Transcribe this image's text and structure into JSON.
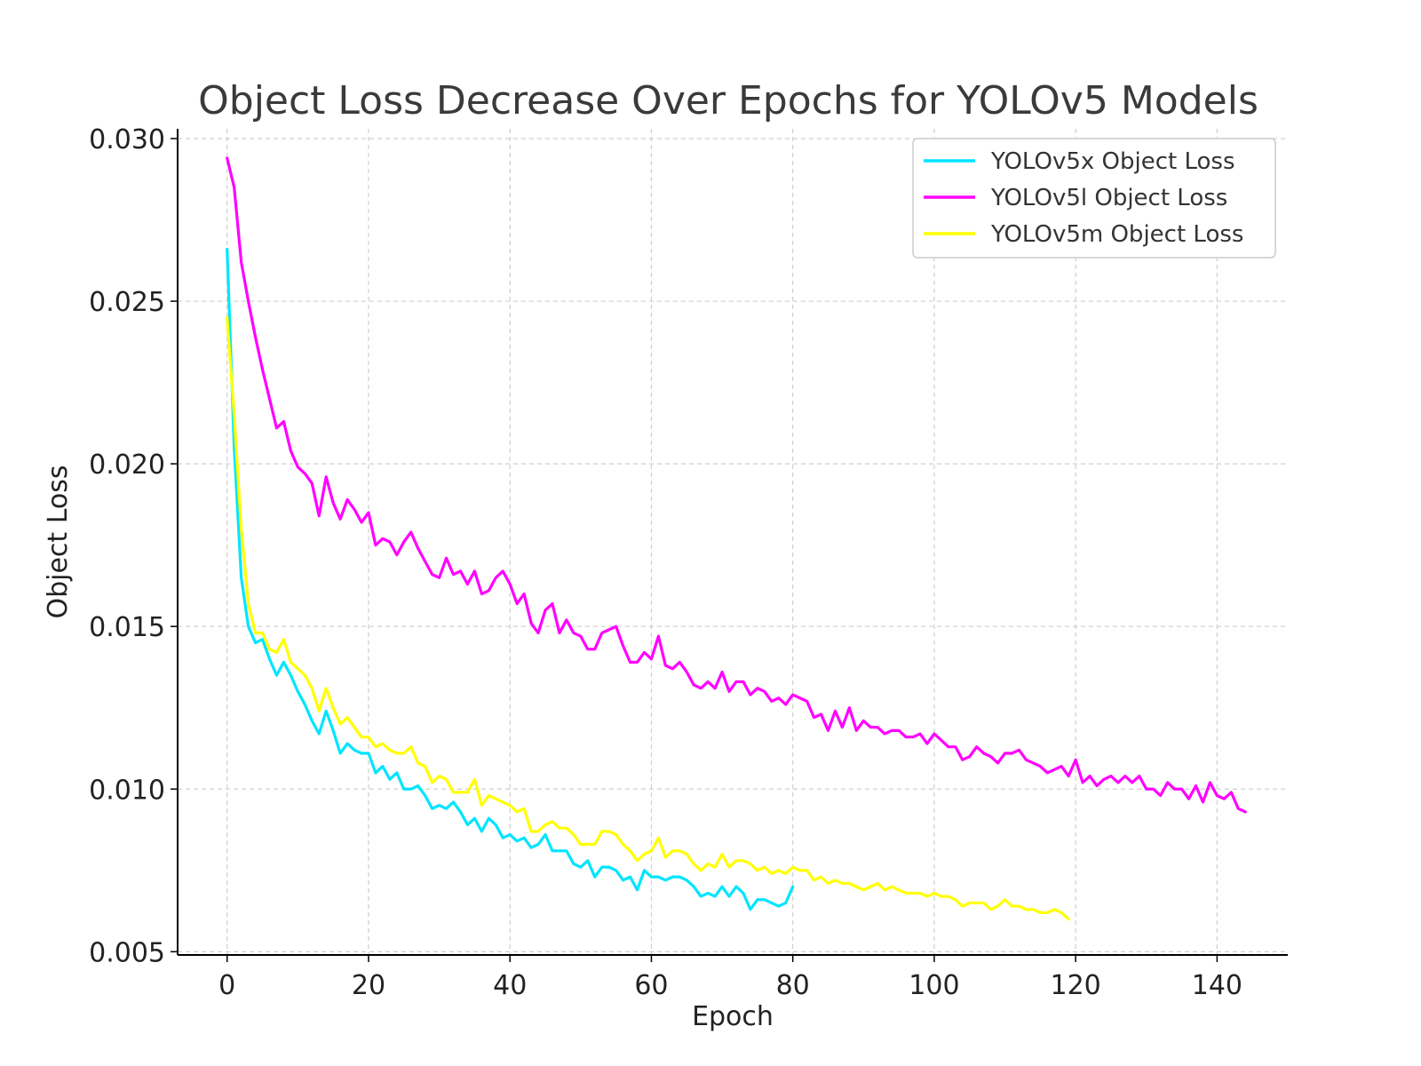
{
  "chart_data": {
    "type": "line",
    "title": "Object Loss Decrease Over Epochs for YOLOv5 Models",
    "xlabel": "Epoch",
    "ylabel": "Object Loss",
    "xlim": [
      -7,
      150
    ],
    "ylim": [
      0.0049,
      0.0303
    ],
    "xticks": [
      0,
      20,
      40,
      60,
      80,
      100,
      120,
      140
    ],
    "xtick_labels": [
      "0",
      "20",
      "40",
      "60",
      "80",
      "100",
      "120",
      "140"
    ],
    "yticks": [
      0.005,
      0.01,
      0.015,
      0.02,
      0.025,
      0.03
    ],
    "ytick_labels": [
      "0.005",
      "0.010",
      "0.015",
      "0.020",
      "0.025",
      "0.030"
    ],
    "grid": true,
    "legend_position": "top-right",
    "series": [
      {
        "name": "YOLOv5x Object Loss",
        "color": "#00e5ff",
        "x_start": 0,
        "values": [
          0.0266,
          0.0205,
          0.0165,
          0.015,
          0.0145,
          0.0146,
          0.014,
          0.0135,
          0.0139,
          0.0135,
          0.013,
          0.0126,
          0.0121,
          0.0117,
          0.0124,
          0.0118,
          0.0111,
          0.0114,
          0.0112,
          0.0111,
          0.0111,
          0.0105,
          0.0107,
          0.0103,
          0.0105,
          0.01,
          0.01,
          0.0101,
          0.0098,
          0.0094,
          0.0095,
          0.0094,
          0.0096,
          0.0093,
          0.0089,
          0.0091,
          0.0087,
          0.0091,
          0.0089,
          0.0085,
          0.0086,
          0.0084,
          0.0085,
          0.0082,
          0.0083,
          0.0086,
          0.0081,
          0.0081,
          0.0081,
          0.0077,
          0.0076,
          0.0078,
          0.0073,
          0.0076,
          0.0076,
          0.0075,
          0.0072,
          0.0073,
          0.0069,
          0.0075,
          0.0073,
          0.0073,
          0.0072,
          0.0073,
          0.0073,
          0.0072,
          0.007,
          0.0067,
          0.0068,
          0.0067,
          0.007,
          0.0067,
          0.007,
          0.0068,
          0.0063,
          0.0066,
          0.0066,
          0.0065,
          0.0064,
          0.0065,
          0.007
        ]
      },
      {
        "name": "YOLOv5l Object Loss",
        "color": "#ff00ff",
        "x_start": 0,
        "values": [
          0.0294,
          0.0285,
          0.0262,
          0.025,
          0.0239,
          0.0229,
          0.022,
          0.0211,
          0.0213,
          0.0204,
          0.0199,
          0.0197,
          0.0194,
          0.0184,
          0.0196,
          0.0188,
          0.0183,
          0.0189,
          0.0186,
          0.0182,
          0.0185,
          0.0175,
          0.0177,
          0.0176,
          0.0172,
          0.0176,
          0.0179,
          0.0174,
          0.017,
          0.0166,
          0.0165,
          0.0171,
          0.0166,
          0.0167,
          0.0163,
          0.0167,
          0.016,
          0.0161,
          0.0165,
          0.0167,
          0.0163,
          0.0157,
          0.016,
          0.0151,
          0.0148,
          0.0155,
          0.0157,
          0.0148,
          0.0152,
          0.0148,
          0.0147,
          0.0143,
          0.0143,
          0.0148,
          0.0149,
          0.015,
          0.0144,
          0.0139,
          0.0139,
          0.0142,
          0.014,
          0.0147,
          0.0138,
          0.0137,
          0.0139,
          0.0136,
          0.0132,
          0.0131,
          0.0133,
          0.0131,
          0.0136,
          0.013,
          0.0133,
          0.0133,
          0.0129,
          0.0131,
          0.013,
          0.0127,
          0.0128,
          0.0126,
          0.0129,
          0.0128,
          0.0127,
          0.0122,
          0.0123,
          0.0118,
          0.0124,
          0.0119,
          0.0125,
          0.0118,
          0.0121,
          0.0119,
          0.0119,
          0.0117,
          0.0118,
          0.0118,
          0.0116,
          0.0116,
          0.0117,
          0.0114,
          0.0117,
          0.0115,
          0.0113,
          0.0113,
          0.0109,
          0.011,
          0.0113,
          0.0111,
          0.011,
          0.0108,
          0.0111,
          0.0111,
          0.0112,
          0.0109,
          0.0108,
          0.0107,
          0.0105,
          0.0106,
          0.0107,
          0.0104,
          0.0109,
          0.0102,
          0.0104,
          0.0101,
          0.0103,
          0.0104,
          0.0102,
          0.0104,
          0.0102,
          0.0104,
          0.01,
          0.01,
          0.0098,
          0.0102,
          0.01,
          0.01,
          0.0097,
          0.0101,
          0.0096,
          0.0102,
          0.0098,
          0.0097,
          0.0099,
          0.0094,
          0.0093
        ]
      },
      {
        "name": "YOLOv5m Object Loss",
        "color": "#ffff00",
        "x_start": 0,
        "values": [
          0.0245,
          0.0215,
          0.018,
          0.0157,
          0.0148,
          0.0148,
          0.0143,
          0.0142,
          0.0146,
          0.0139,
          0.0137,
          0.0135,
          0.0131,
          0.0124,
          0.0131,
          0.0125,
          0.012,
          0.0122,
          0.0119,
          0.0116,
          0.0116,
          0.0113,
          0.0114,
          0.0112,
          0.0111,
          0.0111,
          0.0113,
          0.0108,
          0.0107,
          0.0102,
          0.0104,
          0.0103,
          0.0099,
          0.0099,
          0.0099,
          0.0103,
          0.0095,
          0.0098,
          0.0097,
          0.0096,
          0.0095,
          0.0093,
          0.0094,
          0.0087,
          0.0087,
          0.0089,
          0.009,
          0.0088,
          0.0088,
          0.0086,
          0.0083,
          0.0083,
          0.0083,
          0.0087,
          0.0087,
          0.0086,
          0.0083,
          0.0081,
          0.0078,
          0.008,
          0.0081,
          0.0085,
          0.0079,
          0.0081,
          0.0081,
          0.008,
          0.0077,
          0.0075,
          0.0077,
          0.0076,
          0.008,
          0.0076,
          0.0078,
          0.0078,
          0.0077,
          0.0075,
          0.0076,
          0.0074,
          0.0075,
          0.0074,
          0.0076,
          0.0075,
          0.0075,
          0.0072,
          0.0073,
          0.0071,
          0.0072,
          0.0071,
          0.0071,
          0.007,
          0.0069,
          0.007,
          0.0071,
          0.0069,
          0.007,
          0.0069,
          0.0068,
          0.0068,
          0.0068,
          0.0067,
          0.0068,
          0.0067,
          0.0067,
          0.0066,
          0.0064,
          0.0065,
          0.0065,
          0.0065,
          0.0063,
          0.0064,
          0.0066,
          0.0064,
          0.0064,
          0.0063,
          0.0063,
          0.0062,
          0.0062,
          0.0063,
          0.0062,
          0.006
        ]
      }
    ]
  }
}
